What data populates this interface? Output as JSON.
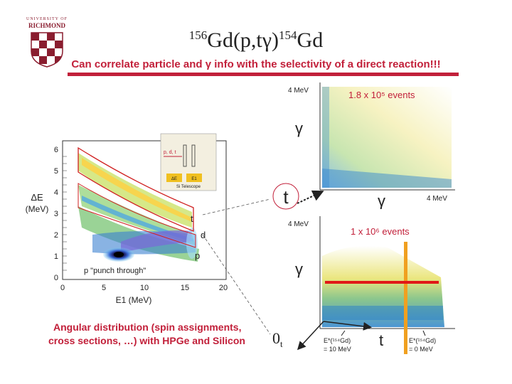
{
  "header": {
    "title": {
      "mass_a": "156",
      "element_a": "Gd(p,t",
      "gamma": "γ",
      "close": ")",
      "mass_b": "154",
      "element_b": "Gd"
    },
    "subtitle": "Can correlate particle and γ info with the selectivity of a direct reaction!!!",
    "logo": {
      "top_text": "UNIVERSITY OF",
      "name": "RICHMOND"
    }
  },
  "left_plot": {
    "y_ticks": [
      "6",
      "5",
      "4",
      "3",
      "2",
      "1",
      "0"
    ],
    "x_ticks": [
      "0",
      "5",
      "10",
      "15",
      "20"
    ],
    "ylabel_line1": "ΔE",
    "ylabel_line2": "(MeV)",
    "xlabel": "E1 (MeV)",
    "labels": {
      "t": "t",
      "d": "d",
      "p": "p",
      "punch": "p \"punch through\""
    },
    "telescope": {
      "particles": "p, d, t",
      "de": "ΔE",
      "e": "E1",
      "caption": "Si Telescope"
    }
  },
  "top_right_plot": {
    "events": "1.8 x 10⁵ events",
    "y_top": "4 MeV",
    "y_label": "γ",
    "x_label": "γ",
    "x_end": "4 MeV"
  },
  "bottom_right_plot": {
    "events": "1 x 10⁶ events",
    "y_top": "4 MeV",
    "y_label": "γ",
    "x_label": "t",
    "e_left_line1": "E*(¹⁵⁴Gd)",
    "e_left_line2": "= 10 MeV",
    "e_right_line1": "E*(¹⁵⁴Gd)",
    "e_right_line2": "= 0 MeV"
  },
  "callouts": {
    "t": "t",
    "zero_t_main": "0",
    "zero_t_sub": "t"
  },
  "footer": {
    "line1": "Angular distribution (spin assignments,",
    "line2": "cross sections, …) with HPGe and Silicon"
  },
  "colors": {
    "brand_red": "#c2203a",
    "accent_orange": "#f0a020",
    "dark_text": "#222222"
  }
}
